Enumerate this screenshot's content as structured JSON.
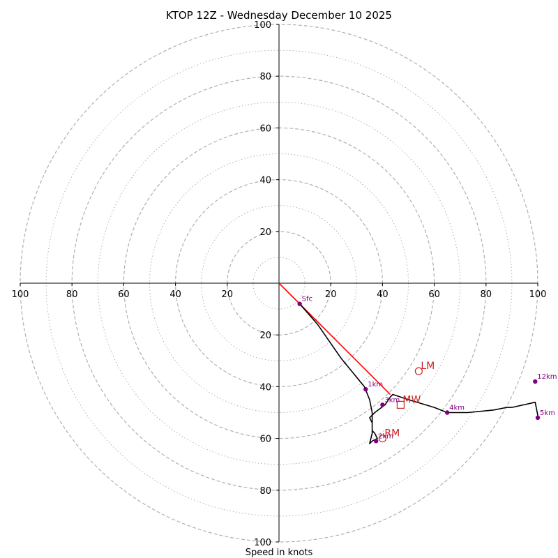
{
  "chart_data": {
    "type": "hodograph",
    "title": "KTOP 12Z - Wednesday December 10 2025",
    "xlabel": "Speed in knots",
    "units": "knots",
    "range": [
      -100,
      100
    ],
    "ring_major": [
      20,
      40,
      60,
      80,
      100
    ],
    "ring_minor": [
      10,
      30,
      50,
      70,
      90
    ],
    "tick_labels": {
      "x": [
        "100",
        "80",
        "60",
        "40",
        "20",
        "20",
        "40",
        "60",
        "80",
        "100"
      ],
      "y": [
        "100",
        "80",
        "60",
        "40",
        "20",
        "20",
        "40",
        "60",
        "80",
        "100"
      ]
    },
    "colors": {
      "trace": "#000000",
      "storm_vector": "#ff0000",
      "height_marker": "#800080",
      "motion_marker": "#cc2222",
      "grid": "#b0b0b0"
    },
    "trace": [
      [
        8,
        -8
      ],
      [
        15,
        -16
      ],
      [
        24,
        -29
      ],
      [
        33,
        -40
      ],
      [
        35,
        -45
      ],
      [
        36,
        -50
      ],
      [
        36,
        -52
      ],
      [
        36,
        -57
      ],
      [
        37,
        -58
      ],
      [
        38,
        -60
      ],
      [
        36,
        -61
      ],
      [
        35,
        -62
      ],
      [
        36,
        -58
      ],
      [
        36,
        -54
      ],
      [
        35,
        -52
      ],
      [
        37,
        -50
      ],
      [
        41,
        -47
      ],
      [
        43,
        -44
      ],
      [
        44,
        -43
      ],
      [
        50,
        -45
      ],
      [
        60,
        -48
      ],
      [
        65,
        -50
      ],
      [
        73,
        -50
      ],
      [
        83,
        -49
      ],
      [
        88,
        -48
      ],
      [
        90,
        -48
      ],
      [
        99,
        -46
      ],
      [
        100,
        -51
      ],
      [
        100,
        -52
      ]
    ],
    "height_markers": [
      {
        "label": "Sfc",
        "u": 8,
        "v": -8
      },
      {
        "label": "1km",
        "u": 33.5,
        "v": -41
      },
      {
        "label": "2km",
        "u": 37.5,
        "v": -61
      },
      {
        "label": "3km",
        "u": 40,
        "v": -47
      },
      {
        "label": "4km",
        "u": 65,
        "v": -50
      },
      {
        "label": "5km",
        "u": 100,
        "v": -52
      },
      {
        "label": "12km",
        "u": 99,
        "v": -38
      }
    ],
    "storm_motion": [
      {
        "label": "LM",
        "u": 54,
        "v": -34,
        "shape": "circle"
      },
      {
        "label": "MW",
        "u": 47,
        "v": -47,
        "shape": "square"
      },
      {
        "label": "RM",
        "u": 40,
        "v": -60,
        "shape": "circle"
      }
    ],
    "storm_vector": {
      "from": [
        0,
        0
      ],
      "to": [
        43,
        -43
      ]
    }
  }
}
